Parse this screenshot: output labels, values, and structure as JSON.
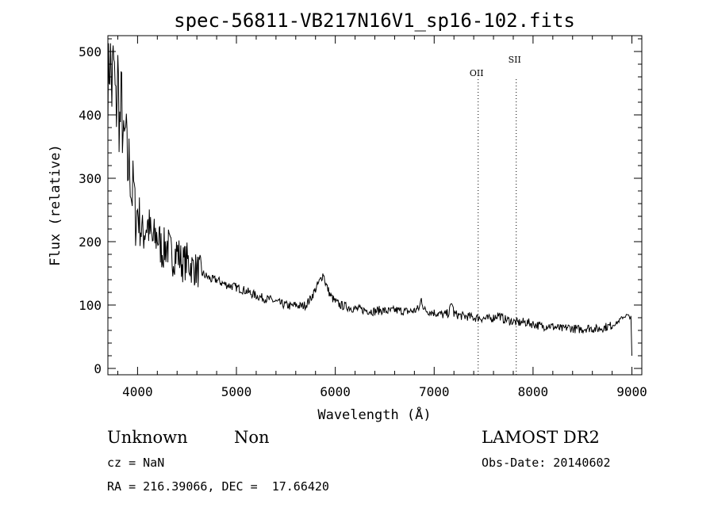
{
  "chart_data": {
    "type": "line",
    "title": "spec-56811-VB217N16V1_sp16-102.fits",
    "xlabel": "Wavelength (Å)",
    "ylabel": "Flux (relative)",
    "xlim": [
      3700,
      9100
    ],
    "ylim": [
      -10,
      525
    ],
    "xticks": [
      4000,
      5000,
      6000,
      7000,
      8000,
      9000
    ],
    "yticks": [
      0,
      100,
      200,
      300,
      400,
      500
    ],
    "grid": false,
    "series": [
      {
        "x": [
          3700,
          3720,
          3740,
          3760,
          3780,
          3800,
          3820,
          3840,
          3860,
          3880,
          3900,
          3920,
          3940,
          3960,
          3980,
          4000,
          4050,
          4100,
          4150,
          4200,
          4250,
          4300,
          4350,
          4400,
          4450,
          4500,
          4550,
          4600,
          4650,
          4700,
          4750,
          4800,
          4850,
          4900,
          4950,
          5000,
          5050,
          5100,
          5150,
          5200,
          5250,
          5300,
          5350,
          5400,
          5450,
          5500,
          5550,
          5600,
          5650,
          5700,
          5750,
          5800,
          5850,
          5880,
          5900,
          5950,
          6000,
          6050,
          6100,
          6150,
          6200,
          6250,
          6300,
          6350,
          6400,
          6450,
          6500,
          6550,
          6600,
          6650,
          6700,
          6750,
          6800,
          6850,
          6870,
          6900,
          6950,
          7000,
          7050,
          7100,
          7150,
          7180,
          7200,
          7250,
          7300,
          7350,
          7400,
          7450,
          7500,
          7550,
          7600,
          7650,
          7700,
          7750,
          7800,
          7850,
          7900,
          7950,
          8000,
          8050,
          8100,
          8150,
          8200,
          8250,
          8300,
          8350,
          8400,
          8450,
          8500,
          8550,
          8600,
          8650,
          8700,
          8750,
          8800,
          8850,
          8900,
          8950,
          8990,
          9000
        ],
        "y": [
          460,
          500,
          440,
          480,
          400,
          460,
          380,
          420,
          340,
          370,
          310,
          330,
          270,
          290,
          230,
          250,
          210,
          230,
          200,
          210,
          185,
          195,
          175,
          185,
          165,
          170,
          160,
          155,
          150,
          145,
          140,
          140,
          135,
          132,
          130,
          128,
          125,
          122,
          118,
          115,
          112,
          110,
          108,
          105,
          102,
          100,
          98,
          100,
          98,
          100,
          110,
          125,
          140,
          150,
          135,
          115,
          105,
          100,
          98,
          96,
          94,
          93,
          92,
          91,
          90,
          92,
          91,
          90,
          92,
          91,
          90,
          90,
          91,
          95,
          110,
          92,
          90,
          88,
          86,
          84,
          88,
          105,
          86,
          84,
          82,
          82,
          80,
          80,
          79,
          78,
          80,
          85,
          78,
          76,
          74,
          72,
          73,
          72,
          70,
          68,
          66,
          68,
          66,
          64,
          62,
          65,
          63,
          62,
          62,
          64,
          63,
          62,
          64,
          66,
          68,
          72,
          80,
          84,
          80,
          20
        ]
      }
    ],
    "line_markers": [
      {
        "label": "OII",
        "x": 7445
      },
      {
        "label": "SII",
        "x": 7830
      }
    ]
  },
  "info": {
    "object_type": "Unknown",
    "subclass": "Non",
    "survey": "LAMOST DR2",
    "cz": "cz = NaN",
    "obs_date": "Obs-Date: 20140602",
    "coords": "RA = 216.39066, DEC =  17.66420"
  }
}
